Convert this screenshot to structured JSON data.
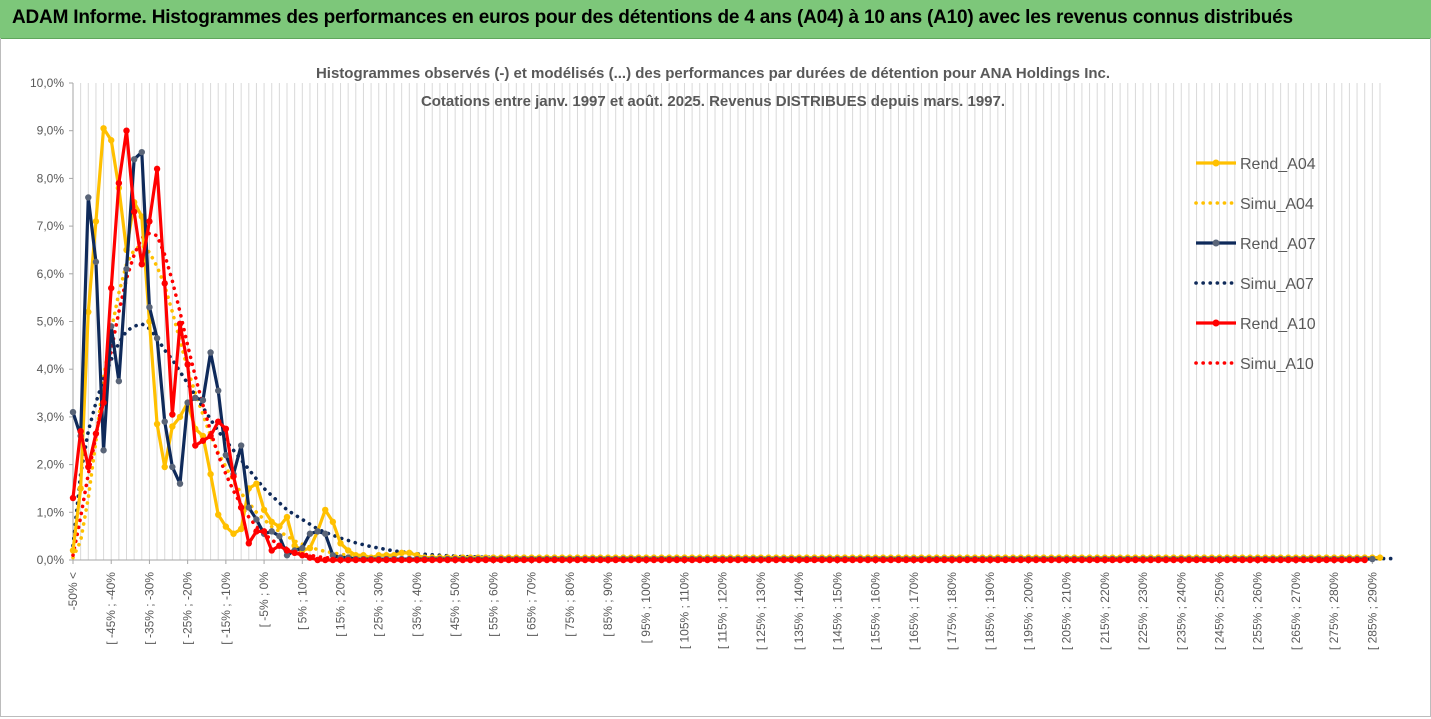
{
  "banner": {
    "title": "ADAM Informe. Histogrammes des performances en euros pour des détentions de 4 ans (A04) à 10 ans (A10) avec les revenus connus distribués"
  },
  "chart_data": {
    "type": "line",
    "title_line1": "Histogrammes observés (-) et modélisés (...) des performances par durées de détention pour ANA Holdings Inc.",
    "title_line2": "Cotations entre janv. 1997 et août. 2025. Revenus DISTRIBUES depuis mars. 1997.",
    "ylim": [
      0,
      10
    ],
    "y_ticks": [
      "0,0%",
      "1,0%",
      "2,0%",
      "3,0%",
      "4,0%",
      "5,0%",
      "6,0%",
      "7,0%",
      "8,0%",
      "9,0%",
      "10,0%"
    ],
    "x_labels": [
      "-50% <",
      "[ -45% ; -40%",
      "[ -35% ; -30%",
      "[ -25% ; -20%",
      "[ -15% ; -10%",
      "[ -5% ; 0%",
      "[ 5% ; 10%",
      "[ 15% ; 20%",
      "[ 25% ; 30%",
      "[ 35% ; 40%",
      "[ 45% ; 50%",
      "[ 55% ; 60%",
      "[ 65% ; 70%",
      "[ 75% ; 80%",
      "[ 85% ; 90%",
      "[ 95% ; 100%",
      "[ 105% ; 110%",
      "[ 115% ; 120%",
      "[ 125% ; 130%",
      "[ 135% ; 140%",
      "[ 145% ; 150%",
      "[ 155% ; 160%",
      "[ 165% ; 170%",
      "[ 175% ; 180%",
      "[ 185% ; 190%",
      "[ 195% ; 200%",
      "[ 205% ; 210%",
      "[ 215% ; 220%",
      "[ 225% ; 230%",
      "[ 235% ; 240%",
      "[ 245% ; 250%",
      "[ 255% ; 260%",
      "[ 265% ; 270%",
      "[ 275% ; 280%",
      "[ 285% ; 290%"
    ],
    "legend_position": "right",
    "grid": "vertical",
    "series": [
      {
        "name": "Rend_A04",
        "style": "solid",
        "color": "#ffc000",
        "values": [
          0.2,
          1.5,
          5.2,
          7.1,
          9.05,
          8.8,
          7.8,
          6.5,
          7.5,
          7.2,
          5.0,
          2.85,
          1.95,
          2.8,
          3.0,
          3.3,
          2.75,
          2.6,
          1.8,
          0.95,
          0.7,
          0.55,
          0.65,
          1.5,
          1.6,
          1.05,
          0.8,
          0.7,
          0.9,
          0.3,
          0.2,
          0.25,
          0.6,
          1.05,
          0.8,
          0.35,
          0.2,
          0.1,
          0.1,
          0.05,
          0.1,
          0.1,
          0.1,
          0.15,
          0.15,
          0.1,
          0.05,
          0.05,
          0.05,
          0.05,
          0.05,
          0.05,
          0.05,
          0.05,
          0.05,
          0.05,
          0.05,
          0.05,
          0.05,
          0.05,
          0.05,
          0.05,
          0.05,
          0.05,
          0.05,
          0.05,
          0.05,
          0.05,
          0.05,
          0.05,
          0.05,
          0.05,
          0.05,
          0.05,
          0.05,
          0.05,
          0.05,
          0.05,
          0.05,
          0.05,
          0.05,
          0.05,
          0.05,
          0.05,
          0.05,
          0.05,
          0.05,
          0.05,
          0.05,
          0.05,
          0.05,
          0.05,
          0.05,
          0.05,
          0.05,
          0.05,
          0.05,
          0.05,
          0.05,
          0.05,
          0.05,
          0.05,
          0.05,
          0.05,
          0.05,
          0.05,
          0.05,
          0.05,
          0.05,
          0.05,
          0.05,
          0.05,
          0.05,
          0.05,
          0.05,
          0.05,
          0.05,
          0.05,
          0.05,
          0.05,
          0.05,
          0.05,
          0.05,
          0.05,
          0.05,
          0.05,
          0.05,
          0.05,
          0.05,
          0.05,
          0.05,
          0.05,
          0.05,
          0.05,
          0.05,
          0.05,
          0.05,
          0.05,
          0.05,
          0.05,
          0.05,
          0.05,
          0.05,
          0.05,
          0.05,
          0.05,
          0.05,
          0.05,
          0.05,
          0.05,
          0.05,
          0.05,
          0.05,
          0.05,
          0.05,
          0.05,
          0.05,
          0.05,
          0.05,
          0.05,
          0.05,
          0.05,
          0.05,
          0.05,
          0.05,
          0.05,
          0.05,
          0.05,
          0.05,
          0.05,
          0.05,
          0.05
        ]
      },
      {
        "name": "Simu_A04",
        "style": "dotted",
        "color": "#ffc000",
        "values": [
          0.05,
          0.4,
          1.3,
          2.5,
          3.8,
          4.8,
          5.6,
          6.2,
          6.5,
          6.6,
          6.45,
          6.15,
          5.75,
          5.2,
          4.6,
          4.0,
          3.5,
          3.05,
          2.6,
          2.25,
          1.95,
          1.65,
          1.4,
          1.2,
          1.0,
          0.85,
          0.7,
          0.6,
          0.5,
          0.4,
          0.33,
          0.27,
          0.22,
          0.18,
          0.15,
          0.12,
          0.1,
          0.08,
          0.06,
          0.05,
          0.04,
          0.03,
          0.03,
          0.02,
          0.02,
          0.02,
          0.01,
          0.01,
          0.01,
          0.01,
          0.01,
          0.01,
          0.01,
          0.01,
          0.01,
          0.01,
          0.01,
          0.01,
          0.01,
          0.01,
          0.01,
          0.01,
          0.01,
          0.01,
          0.01,
          0.01,
          0.01,
          0.01,
          0.01,
          0.01,
          0.01,
          0.01,
          0.01,
          0.01,
          0.01,
          0.01,
          0.01,
          0.01,
          0.01,
          0.01,
          0.01,
          0.01,
          0.01,
          0.01,
          0.01,
          0.01,
          0.01,
          0.01,
          0.01,
          0.01,
          0.01,
          0.01,
          0.01,
          0.01,
          0.01,
          0.01,
          0.01,
          0.01,
          0.01,
          0.01,
          0.01,
          0.01,
          0.01,
          0.01,
          0.01,
          0.01,
          0.01,
          0.01,
          0.01,
          0.01,
          0.01,
          0.01,
          0.01,
          0.01,
          0.01,
          0.01,
          0.01,
          0.01,
          0.01,
          0.01,
          0.01,
          0.01,
          0.01,
          0.01,
          0.01,
          0.01,
          0.01,
          0.01,
          0.01,
          0.01,
          0.01,
          0.01,
          0.01,
          0.01,
          0.01,
          0.01,
          0.01,
          0.01,
          0.01,
          0.01,
          0.01,
          0.01,
          0.01,
          0.01,
          0.01,
          0.01,
          0.01,
          0.01,
          0.01,
          0.01,
          0.01,
          0.01,
          0.01,
          0.01,
          0.01,
          0.01,
          0.01,
          0.01,
          0.01,
          0.01,
          0.01,
          0.01,
          0.01,
          0.01,
          0.01,
          0.01,
          0.01,
          0.01,
          0.01,
          0.01
        ]
      },
      {
        "name": "Rend_A07",
        "style": "solid",
        "color": "#0f2a5a",
        "values": [
          3.1,
          2.6,
          7.6,
          6.25,
          2.3,
          4.9,
          3.75,
          6.1,
          8.4,
          8.55,
          5.3,
          4.65,
          2.9,
          1.95,
          1.6,
          3.3,
          3.4,
          3.35,
          4.35,
          3.55,
          2.2,
          1.8,
          2.4,
          1.1,
          0.85,
          0.55,
          0.6,
          0.5,
          0.1,
          0.2,
          0.25,
          0.55,
          0.6,
          0.55,
          0.1,
          0.05,
          0.05,
          0.02,
          0.02,
          0.02,
          0.02,
          0.02,
          0.02,
          0.02,
          0.02,
          0.02,
          0.02,
          0.02,
          0.02,
          0.02,
          0.02,
          0.02,
          0.02,
          0.02,
          0.02,
          0.02,
          0.02,
          0.02,
          0.02,
          0.02,
          0.02,
          0.02,
          0.02,
          0.02,
          0.02,
          0.02,
          0.02,
          0.02,
          0.02,
          0.02,
          0.02,
          0.02,
          0.02,
          0.02,
          0.02,
          0.02,
          0.02,
          0.02,
          0.02,
          0.02,
          0.02,
          0.02,
          0.02,
          0.02,
          0.02,
          0.02,
          0.02,
          0.02,
          0.02,
          0.02,
          0.02,
          0.02,
          0.02,
          0.02,
          0.02,
          0.02,
          0.02,
          0.02,
          0.02,
          0.02,
          0.02,
          0.02,
          0.02,
          0.02,
          0.02,
          0.02,
          0.02,
          0.02,
          0.02,
          0.02,
          0.02,
          0.02,
          0.02,
          0.02,
          0.02,
          0.02,
          0.02,
          0.02,
          0.02,
          0.02,
          0.02,
          0.02,
          0.02,
          0.02,
          0.02,
          0.02,
          0.02,
          0.02,
          0.02,
          0.02,
          0.02,
          0.02,
          0.02,
          0.02,
          0.02,
          0.02,
          0.02,
          0.02,
          0.02,
          0.02,
          0.02,
          0.02,
          0.02,
          0.02,
          0.02,
          0.02,
          0.02,
          0.02,
          0.02,
          0.02,
          0.02,
          0.02,
          0.02,
          0.02,
          0.02,
          0.02,
          0.02,
          0.02,
          0.02,
          0.02,
          0.02,
          0.02,
          0.02,
          0.02,
          0.02,
          0.02,
          0.02,
          0.02,
          0.02,
          0.02,
          0.02
        ]
      },
      {
        "name": "Simu_A07",
        "style": "dotted",
        "color": "#0f2a5a",
        "values": [
          0.3,
          1.8,
          2.7,
          3.3,
          3.8,
          4.2,
          4.55,
          4.8,
          4.9,
          4.95,
          4.85,
          4.65,
          4.4,
          4.2,
          3.95,
          3.7,
          3.45,
          3.2,
          2.95,
          2.7,
          2.5,
          2.3,
          2.1,
          1.9,
          1.7,
          1.5,
          1.35,
          1.2,
          1.05,
          0.95,
          0.85,
          0.75,
          0.65,
          0.58,
          0.52,
          0.46,
          0.41,
          0.36,
          0.32,
          0.28,
          0.25,
          0.22,
          0.19,
          0.17,
          0.15,
          0.13,
          0.12,
          0.11,
          0.1,
          0.09,
          0.08,
          0.07,
          0.07,
          0.06,
          0.06,
          0.05,
          0.05,
          0.05,
          0.04,
          0.04,
          0.04,
          0.03,
          0.03,
          0.03,
          0.03,
          0.03,
          0.03,
          0.03,
          0.03,
          0.03,
          0.03,
          0.03,
          0.03,
          0.03,
          0.03,
          0.03,
          0.03,
          0.03,
          0.03,
          0.03,
          0.03,
          0.03,
          0.03,
          0.03,
          0.03,
          0.03,
          0.03,
          0.03,
          0.03,
          0.03,
          0.03,
          0.03,
          0.03,
          0.03,
          0.03,
          0.03,
          0.03,
          0.03,
          0.03,
          0.03,
          0.03,
          0.03,
          0.03,
          0.03,
          0.03,
          0.03,
          0.03,
          0.03,
          0.03,
          0.03,
          0.03,
          0.03,
          0.03,
          0.03,
          0.03,
          0.03,
          0.03,
          0.03,
          0.03,
          0.03,
          0.03,
          0.03,
          0.03,
          0.03,
          0.03,
          0.03,
          0.03,
          0.03,
          0.03,
          0.03,
          0.03,
          0.03,
          0.03,
          0.03,
          0.03,
          0.03,
          0.03,
          0.03,
          0.03,
          0.03,
          0.03,
          0.03,
          0.03,
          0.03,
          0.03,
          0.03,
          0.03,
          0.03,
          0.03,
          0.03,
          0.03,
          0.03,
          0.03,
          0.03,
          0.03,
          0.03,
          0.03,
          0.03,
          0.03,
          0.03,
          0.03,
          0.03,
          0.03,
          0.03,
          0.03,
          0.03,
          0.03,
          0.03,
          0.03,
          0.03,
          0.03,
          0.03,
          0.03,
          0.03
        ]
      },
      {
        "name": "Rend_A10",
        "style": "solid",
        "color": "#ff0000",
        "values": [
          1.3,
          2.7,
          1.95,
          2.65,
          3.3,
          5.7,
          7.9,
          9.0,
          7.3,
          6.2,
          7.1,
          8.2,
          5.8,
          3.05,
          4.95,
          4.1,
          2.4,
          2.5,
          2.6,
          2.9,
          2.75,
          1.75,
          1.1,
          0.35,
          0.6,
          0.6,
          0.2,
          0.3,
          0.2,
          0.15,
          0.1,
          0.05,
          0.0,
          0.0,
          0.0,
          0.0,
          0.0,
          0.0,
          0.0,
          0.0,
          0.0,
          0.0,
          0.0,
          0.0,
          0.0,
          0.0,
          0.0,
          0.0,
          0.0,
          0.0,
          0.0,
          0.0,
          0.0,
          0.0,
          0.0,
          0.0,
          0.0,
          0.0,
          0.0,
          0.0,
          0.0,
          0.0,
          0.0,
          0.0,
          0.0,
          0.0,
          0.0,
          0.0,
          0.0,
          0.0,
          0.0,
          0.0,
          0.0,
          0.0,
          0.0,
          0.0,
          0.0,
          0.0,
          0.0,
          0.0,
          0.0,
          0.0,
          0.0,
          0.0,
          0.0,
          0.0,
          0.0,
          0.0,
          0.0,
          0.0,
          0.0,
          0.0,
          0.0,
          0.0,
          0.0,
          0.0,
          0.0,
          0.0,
          0.0,
          0.0,
          0.0,
          0.0,
          0.0,
          0.0,
          0.0,
          0.0,
          0.0,
          0.0,
          0.0,
          0.0,
          0.0,
          0.0,
          0.0,
          0.0,
          0.0,
          0.0,
          0.0,
          0.0,
          0.0,
          0.0,
          0.0,
          0.0,
          0.0,
          0.0,
          0.0,
          0.0,
          0.0,
          0.0,
          0.0,
          0.0,
          0.0,
          0.0,
          0.0,
          0.0,
          0.0,
          0.0,
          0.0,
          0.0,
          0.0,
          0.0,
          0.0,
          0.0,
          0.0,
          0.0,
          0.0,
          0.0,
          0.0,
          0.0,
          0.0,
          0.0,
          0.0,
          0.0,
          0.0,
          0.0,
          0.0,
          0.0,
          0.0,
          0.0,
          0.0,
          0.0,
          0.0,
          0.0,
          0.0,
          0.0,
          0.0,
          0.0,
          0.0,
          0.0,
          0.0,
          0.0
        ]
      },
      {
        "name": "Simu_A10",
        "style": "dotted",
        "color": "#ff0000",
        "values": [
          0.1,
          0.9,
          1.8,
          2.6,
          3.5,
          4.4,
          5.2,
          5.9,
          6.4,
          6.75,
          6.85,
          6.8,
          6.4,
          5.85,
          5.2,
          4.5,
          3.85,
          3.25,
          2.7,
          2.2,
          1.8,
          1.45,
          1.15,
          0.9,
          0.7,
          0.55,
          0.42,
          0.32,
          0.24,
          0.18,
          0.13,
          0.1,
          0.07,
          0.05,
          0.04,
          0.03,
          0.02,
          0.01,
          0.01,
          0.01,
          0.0,
          0.0,
          0.0,
          0.0,
          0.0,
          0.0,
          0.0,
          0.0,
          0.0,
          0.0,
          0.0,
          0.0,
          0.0,
          0.0,
          0.0,
          0.0,
          0.0,
          0.0,
          0.0,
          0.0,
          0.0,
          0.0,
          0.0,
          0.0,
          0.0,
          0.0,
          0.0,
          0.0,
          0.0,
          0.0,
          0.0,
          0.0,
          0.0,
          0.0,
          0.0,
          0.0,
          0.0,
          0.0,
          0.0,
          0.0,
          0.0,
          0.0,
          0.0,
          0.0,
          0.0,
          0.0,
          0.0,
          0.0,
          0.0,
          0.0,
          0.0,
          0.0,
          0.0,
          0.0,
          0.0,
          0.0,
          0.0,
          0.0,
          0.0,
          0.0,
          0.0,
          0.0,
          0.0,
          0.0,
          0.0,
          0.0,
          0.0,
          0.0,
          0.0,
          0.0,
          0.0,
          0.0,
          0.0,
          0.0,
          0.0,
          0.0,
          0.0,
          0.0,
          0.0,
          0.0,
          0.0,
          0.0,
          0.0,
          0.0,
          0.0,
          0.0,
          0.0,
          0.0,
          0.0,
          0.0,
          0.0,
          0.0,
          0.0,
          0.0,
          0.0,
          0.0,
          0.0,
          0.0,
          0.0,
          0.0,
          0.0,
          0.0,
          0.0,
          0.0,
          0.0,
          0.0,
          0.0,
          0.0,
          0.0,
          0.0,
          0.0,
          0.0,
          0.0,
          0.0,
          0.0,
          0.0,
          0.0,
          0.0,
          0.0,
          0.0,
          0.0,
          0.0,
          0.0,
          0.0,
          0.0,
          0.0,
          0.0,
          0.0,
          0.0,
          0.0
        ]
      }
    ]
  }
}
